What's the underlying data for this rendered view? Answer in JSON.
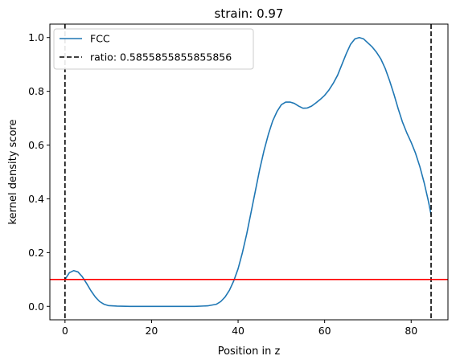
{
  "chart_data": {
    "type": "line",
    "title": "strain: 0.97",
    "xlabel": "Position in z",
    "ylabel": "kernel density score",
    "xlim": [
      -3.5,
      88.5
    ],
    "ylim": [
      -0.05,
      1.05
    ],
    "xticks": [
      0,
      20,
      40,
      60,
      80
    ],
    "yticks": [
      0.0,
      0.2,
      0.4,
      0.6,
      0.8,
      1.0
    ],
    "xtick_labels": [
      "0",
      "20",
      "40",
      "60",
      "80"
    ],
    "ytick_labels": [
      "0.0",
      "0.2",
      "0.4",
      "0.6",
      "0.8",
      "1.0"
    ],
    "grid": false,
    "legend_position": "top-left",
    "series": [
      {
        "name": "FCC",
        "color": "#1f77b4",
        "style": "solid",
        "x": [
          0,
          1,
          2,
          3,
          4,
          5,
          6,
          7,
          8,
          9,
          10,
          12,
          15,
          20,
          25,
          30,
          33,
          35,
          36,
          37,
          38,
          39,
          40,
          41,
          42,
          43,
          44,
          45,
          46,
          47,
          48,
          49,
          50,
          51,
          52,
          53,
          54,
          55,
          56,
          57,
          58,
          59,
          60,
          61,
          62,
          63,
          64,
          65,
          66,
          67,
          68,
          69,
          70,
          71,
          72,
          73,
          74,
          75,
          76,
          77,
          78,
          79,
          80,
          81,
          82,
          83,
          84,
          84.6
        ],
        "y": [
          0.1,
          0.125,
          0.133,
          0.128,
          0.11,
          0.085,
          0.058,
          0.035,
          0.018,
          0.008,
          0.003,
          0.001,
          0.0,
          0.0,
          0.0,
          0.0,
          0.002,
          0.008,
          0.018,
          0.035,
          0.06,
          0.095,
          0.14,
          0.2,
          0.27,
          0.35,
          0.43,
          0.51,
          0.58,
          0.64,
          0.69,
          0.725,
          0.75,
          0.76,
          0.76,
          0.755,
          0.745,
          0.737,
          0.738,
          0.745,
          0.757,
          0.77,
          0.785,
          0.805,
          0.83,
          0.86,
          0.9,
          0.94,
          0.975,
          0.995,
          1.0,
          0.995,
          0.98,
          0.965,
          0.945,
          0.92,
          0.885,
          0.84,
          0.79,
          0.735,
          0.685,
          0.645,
          0.61,
          0.57,
          0.52,
          0.46,
          0.39,
          0.34
        ]
      },
      {
        "name": "ratio: 0.5855855855855856",
        "color": "#000000",
        "style": "dashed",
        "type": "vline",
        "x_values": [
          0,
          84.6
        ]
      },
      {
        "color": "#ff0000",
        "style": "solid",
        "type": "hline",
        "y_value": 0.1
      }
    ]
  }
}
